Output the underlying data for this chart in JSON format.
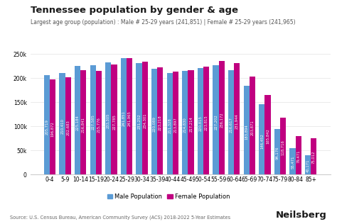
{
  "title": "Tennessee population by gender & age",
  "subtitle": "Largest age group (population) : Male # 25-29 years (241,851) | Female # 25-29 years (241,965)",
  "source": "Source: U.S. Census Bureau, American Community Survey (ACS) 2018-2022 5-Year Estimates",
  "categories": [
    "0-4",
    "5-9",
    "10-14",
    "15-19",
    "20-24",
    "25-29",
    "30-34",
    "35-39",
    "40-44",
    "45-49",
    "50-54",
    "55-59",
    "60-64",
    "65-69",
    "70-74",
    "75-79",
    "80-84",
    "85+"
  ],
  "male": [
    205719,
    210410,
    225184,
    227585,
    233305,
    241851,
    231252,
    220089,
    211328,
    214830,
    220815,
    227202,
    216617,
    183894,
    146452,
    94176,
    55471,
    40171
  ],
  "female": [
    196872,
    202683,
    216841,
    215776,
    227785,
    241965,
    234301,
    223218,
    213897,
    217214,
    223815,
    236172,
    231944,
    203871,
    165842,
    118716,
    79471,
    75012
  ],
  "male_labels": [
    "205,719",
    "210,410",
    "225,184",
    "227,585",
    "233,305",
    "241,851",
    "231,252",
    "220,089",
    "211,328",
    "214,830",
    "220,815",
    "227,202",
    "216,617",
    "183,894",
    "146,452",
    "94,176",
    "55,471",
    "40,171"
  ],
  "female_labels": [
    "196,872",
    "202,683",
    "216,841",
    "215,776",
    "227,785",
    "241,965",
    "234,301",
    "223,218",
    "213,897",
    "217,214",
    "223,815",
    "236,172",
    "231,944",
    "203,871",
    "165,842",
    "118,716",
    "79,471",
    "75,012"
  ],
  "male_color": "#5b9bd5",
  "female_color": "#c00080",
  "bar_width": 0.38,
  "ylim": [
    0,
    260000
  ],
  "yticks": [
    0,
    50000,
    100000,
    150000,
    200000,
    250000
  ],
  "ytick_labels": [
    "0",
    "50k",
    "100k",
    "150k",
    "200k",
    "250k"
  ],
  "bg_color": "#ffffff",
  "grid_color": "#e8e8e8",
  "title_fontsize": 9.5,
  "subtitle_fontsize": 5.5,
  "label_fontsize": 3.8,
  "axis_fontsize": 5.5,
  "legend_fontsize": 6.0,
  "source_fontsize": 4.8,
  "neilsberg_fontsize": 9.5
}
